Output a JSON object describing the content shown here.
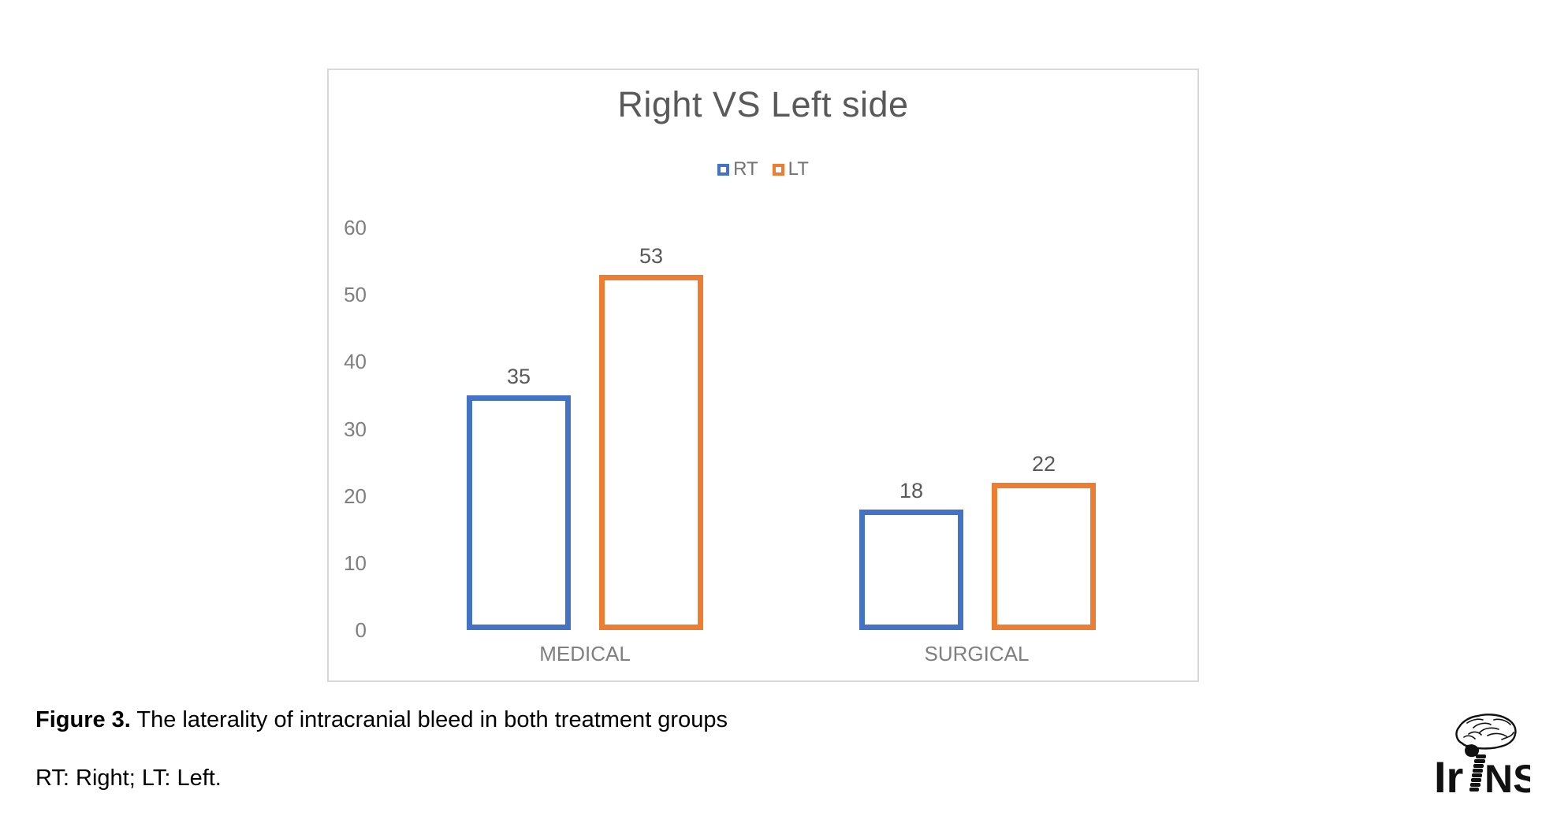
{
  "chart_data": {
    "type": "bar",
    "title": "Right VS Left side",
    "categories": [
      "MEDICAL",
      "SURGICAL"
    ],
    "series": [
      {
        "name": "RT",
        "color": "#4472C4",
        "values": [
          35,
          18
        ]
      },
      {
        "name": "LT",
        "color": "#ED7D31",
        "values": [
          53,
          22
        ]
      }
    ],
    "xlabel": "",
    "ylabel": "",
    "ylim": [
      0,
      60
    ],
    "yticks": [
      0,
      10,
      20,
      30,
      40,
      50,
      60
    ],
    "grid": false,
    "legend_position": "top-center",
    "bar_style": "hollow-outlined",
    "data_labels_shown": true
  },
  "caption": {
    "figure_label": "Figure 3.",
    "figure_text": " The laterality of intracranial bleed in both treatment groups",
    "abbreviations": "RT: Right; LT: Left."
  },
  "logo": {
    "text_left": "Ir",
    "text_right": "NS"
  },
  "colors": {
    "rt_series": "#4472C4",
    "lt_series": "#ED7D31",
    "title_text": "#595959",
    "axis_text": "#7F7F7F",
    "chart_border": "#D9D9D9"
  }
}
